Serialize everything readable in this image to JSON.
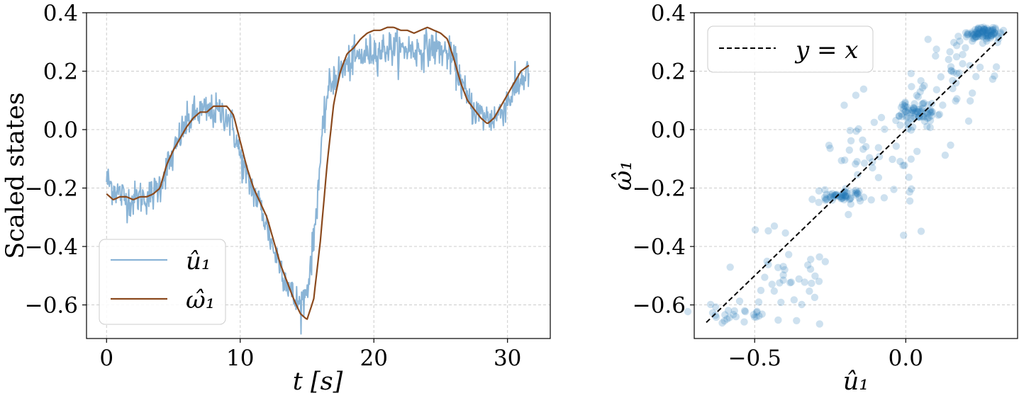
{
  "chart_data": [
    {
      "type": "line",
      "title": "",
      "xlabel": "t [s]",
      "ylabel": "Scaled states",
      "xlim": [
        -1.5,
        33.2
      ],
      "ylim": [
        -0.715,
        0.4
      ],
      "xticks": [
        0,
        10,
        20,
        30
      ],
      "xtick_labels": [
        "0",
        "10",
        "20",
        "30"
      ],
      "yticks": [
        -0.6,
        -0.4,
        -0.2,
        0.0,
        0.2,
        0.4
      ],
      "ytick_labels": [
        "−0.6",
        "−0.4",
        "−0.2",
        "0.0",
        "0.2",
        "0.4"
      ],
      "grid": true,
      "legend": "lower-left",
      "series": [
        {
          "name": "û₁",
          "color": "#8ab4d6",
          "noisy": true,
          "x": [
            0,
            0.5,
            1,
            1.5,
            2,
            2.5,
            3,
            3.5,
            4,
            4.5,
            5,
            5.5,
            6,
            6.5,
            7,
            7.5,
            8,
            8.5,
            9,
            9.5,
            10,
            10.5,
            11,
            11.5,
            12,
            12.5,
            13,
            13.5,
            14,
            14.5,
            15,
            15.5,
            16,
            16.5,
            17,
            17.5,
            18,
            18.5,
            19,
            19.5,
            20,
            20.5,
            21,
            21.5,
            22,
            22.5,
            23,
            23.5,
            24,
            24.5,
            25,
            25.5,
            26,
            26.5,
            27,
            27.5,
            28,
            28.5,
            29,
            29.5,
            30,
            30.5,
            31,
            31.6
          ],
          "y": [
            -0.17,
            -0.2,
            -0.22,
            -0.24,
            -0.24,
            -0.23,
            -0.23,
            -0.22,
            -0.19,
            -0.13,
            -0.09,
            -0.02,
            0.02,
            0.05,
            0.06,
            0.06,
            0.06,
            0.06,
            0.05,
            0.0,
            -0.09,
            -0.17,
            -0.21,
            -0.26,
            -0.33,
            -0.41,
            -0.46,
            -0.52,
            -0.58,
            -0.6,
            -0.55,
            -0.38,
            -0.1,
            0.12,
            0.18,
            0.2,
            0.22,
            0.24,
            0.25,
            0.26,
            0.27,
            0.27,
            0.28,
            0.28,
            0.27,
            0.28,
            0.27,
            0.27,
            0.28,
            0.28,
            0.27,
            0.26,
            0.23,
            0.17,
            0.1,
            0.07,
            0.05,
            0.04,
            0.04,
            0.06,
            0.1,
            0.13,
            0.17,
            0.2
          ]
        },
        {
          "name": "ω̂₁",
          "color": "#8b4a1e",
          "noisy": false,
          "x": [
            0,
            0.5,
            1,
            1.5,
            2,
            2.5,
            3,
            3.5,
            4,
            4.5,
            5,
            5.5,
            6,
            6.5,
            7,
            7.5,
            8,
            8.5,
            9,
            9.5,
            10,
            10.5,
            11,
            11.5,
            12,
            12.5,
            13,
            13.5,
            14,
            14.5,
            15,
            15.5,
            16,
            16.5,
            17,
            17.5,
            18,
            18.5,
            19,
            19.5,
            20,
            20.5,
            21,
            21.5,
            22,
            22.5,
            23,
            23.5,
            24,
            24.5,
            25,
            25.5,
            26,
            26.5,
            27,
            27.5,
            28,
            28.5,
            29,
            29.5,
            30,
            30.5,
            31,
            31.6
          ],
          "y": [
            -0.22,
            -0.24,
            -0.23,
            -0.23,
            -0.24,
            -0.23,
            -0.23,
            -0.22,
            -0.2,
            -0.12,
            -0.07,
            -0.03,
            0.01,
            0.04,
            0.06,
            0.06,
            0.08,
            0.08,
            0.08,
            0.05,
            -0.04,
            -0.13,
            -0.2,
            -0.25,
            -0.3,
            -0.38,
            -0.46,
            -0.52,
            -0.58,
            -0.63,
            -0.65,
            -0.58,
            -0.38,
            -0.12,
            0.09,
            0.2,
            0.26,
            0.28,
            0.31,
            0.33,
            0.34,
            0.34,
            0.35,
            0.35,
            0.34,
            0.34,
            0.33,
            0.34,
            0.35,
            0.34,
            0.33,
            0.31,
            0.24,
            0.16,
            0.1,
            0.07,
            0.04,
            0.02,
            0.04,
            0.08,
            0.12,
            0.16,
            0.2,
            0.22
          ]
        }
      ]
    },
    {
      "type": "scatter",
      "title": "",
      "xlabel": "û₁",
      "ylabel": "ω̂₁",
      "xlim": [
        -0.7,
        0.37
      ],
      "ylim": [
        -0.715,
        0.4
      ],
      "xticks": [
        -0.5,
        0.0
      ],
      "xtick_labels": [
        "−0.5",
        "0.0"
      ],
      "yticks": [
        -0.6,
        -0.4,
        -0.2,
        0.0,
        0.2,
        0.4
      ],
      "ytick_labels": [
        "−0.6",
        "−0.4",
        "−0.2",
        "0.0",
        "0.2",
        "0.4"
      ],
      "grid": true,
      "legend": "top-left",
      "point_color": "#1f77b4",
      "point_alpha": 0.22,
      "reference_line": {
        "name": "y = x",
        "color": "#000000",
        "style": "dashed",
        "from": -0.66,
        "to": 0.34
      },
      "clusters": [
        {
          "cx": 0.25,
          "cy": 0.33,
          "sx": 0.03,
          "sy": 0.012,
          "n": 90
        },
        {
          "cx": 0.04,
          "cy": 0.06,
          "sx": 0.03,
          "sy": 0.022,
          "n": 70
        },
        {
          "cx": -0.22,
          "cy": -0.23,
          "sx": 0.04,
          "sy": 0.012,
          "n": 55
        },
        {
          "cx": -0.4,
          "cy": -0.5,
          "sx": 0.1,
          "sy": 0.09,
          "n": 40
        },
        {
          "cx": -0.55,
          "cy": -0.63,
          "sx": 0.06,
          "sy": 0.02,
          "n": 25
        },
        {
          "cx": 0.15,
          "cy": 0.18,
          "sx": 0.08,
          "sy": 0.08,
          "n": 45
        },
        {
          "cx": -0.08,
          "cy": -0.1,
          "sx": 0.09,
          "sy": 0.1,
          "n": 50
        }
      ]
    }
  ],
  "legend_left": {
    "items": [
      {
        "label": "û₁"
      },
      {
        "label": "ω̂₁"
      }
    ]
  },
  "legend_right": {
    "items": [
      {
        "label": "y = x"
      }
    ]
  },
  "left_ylabel": "Scaled states",
  "left_xlabel": "t [s]",
  "right_ylabel": "ω̂₁",
  "right_xlabel": "û₁"
}
